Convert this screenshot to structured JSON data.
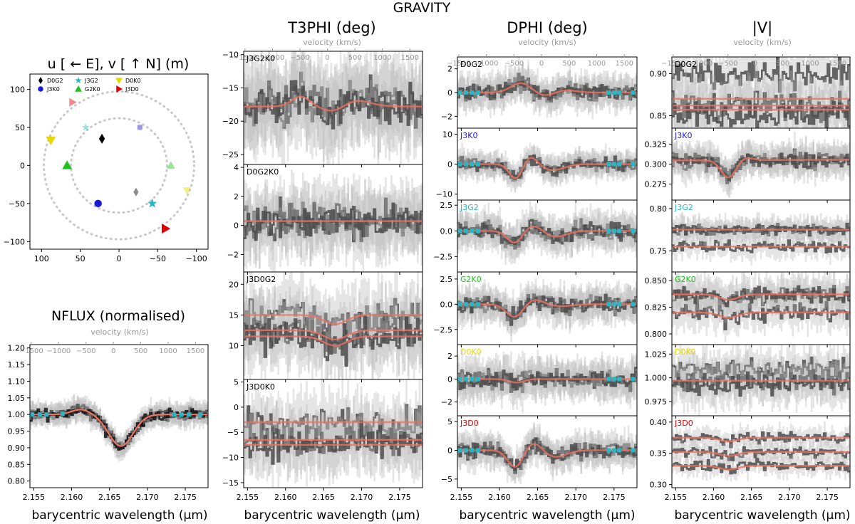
{
  "figure": {
    "suptitle": "GRAVITY",
    "column_titles": [
      "T3PHI (deg)",
      "DPHI (deg)",
      "|V|"
    ]
  },
  "colors": {
    "model": "#f07060",
    "data": "#4a4a4a",
    "continuum_marker": "#2ab7c4",
    "velocity_axis": "#999999",
    "D0G2": "#000000",
    "J3K0": "#1a1adb",
    "J3G2": "#2ab7c4",
    "G2K0": "#20c020",
    "D0K0": "#e6d800",
    "J3D0": "#e00000"
  },
  "chart_data": [
    {
      "id": "uv",
      "type": "scatter",
      "title": "u [ ← E], v [ ↑ N] (m)",
      "xlim": [
        115,
        -115
      ],
      "ylim": [
        -110,
        120
      ],
      "xticks": [
        100,
        50,
        0,
        -50,
        -100
      ],
      "yticks": [
        100,
        50,
        0,
        -50,
        -100
      ],
      "ring_radii_m": [
        62,
        97
      ],
      "legend": [
        "D0G2",
        "J3K0",
        "J3G2",
        "G2K0",
        "D0K0",
        "J3D0"
      ],
      "baselines": [
        {
          "name": "D0G2",
          "marker": "diamond",
          "color": "#000000",
          "u": 22,
          "v": 35
        },
        {
          "name": "J3K0",
          "marker": "circle",
          "color": "#1a1adb",
          "u": 27,
          "v": -50
        },
        {
          "name": "J3G2",
          "marker": "star",
          "color": "#2ab7c4",
          "u": -43,
          "v": -50
        },
        {
          "name": "G2K0",
          "marker": "triangle-up",
          "color": "#20c020",
          "u": 67,
          "v": 0
        },
        {
          "name": "D0K0",
          "marker": "triangle-down",
          "color": "#e6d800",
          "u": 88,
          "v": 33
        },
        {
          "name": "J3D0",
          "marker": "triangle-right",
          "color": "#e00000",
          "u": -60,
          "v": -83
        }
      ],
      "mirror_points": [
        {
          "name": "D0G2",
          "color": "#000000",
          "u": -22,
          "v": -35
        },
        {
          "name": "J3K0",
          "color": "#1a1adb",
          "u": -27,
          "v": 50
        },
        {
          "name": "J3G2",
          "color": "#2ab7c4",
          "u": 43,
          "v": 50
        },
        {
          "name": "G2K0",
          "color": "#20c020",
          "u": -67,
          "v": 0
        },
        {
          "name": "D0K0",
          "color": "#e6d800",
          "u": -88,
          "v": -33
        },
        {
          "name": "J3D0",
          "color": "#e00000",
          "u": 60,
          "v": 83
        }
      ]
    },
    {
      "id": "nflux",
      "type": "line",
      "title": "NFLUX (normalised)",
      "xlabel": "barycentric wavelength (μm)",
      "vlabel": "velocity (km/s)",
      "xlim": [
        2.1545,
        2.178
      ],
      "ylim": [
        0.78,
        1.21
      ],
      "xticks": [
        "2.155",
        "2.160",
        "2.165",
        "2.170",
        "2.175"
      ],
      "yticks": [
        "0.80",
        "0.85",
        "0.90",
        "0.95",
        "1.00",
        "1.05",
        "1.10",
        "1.15",
        "1.20"
      ],
      "vticks": [
        "−1500",
        "−1000",
        "−500",
        "0",
        "500",
        "1000",
        "1500"
      ],
      "lines": [
        {
          "kind": "baseline",
          "value": 1.0
        }
      ],
      "features": [
        {
          "center": 2.1612,
          "amp": 0.015,
          "width": 0.0012
        },
        {
          "center": 2.1665,
          "amp": -0.095,
          "width": 0.0016
        }
      ],
      "scatter": 0.012
    },
    {
      "id": "t3_J3G2K0",
      "type": "line",
      "label": "J3G2K0",
      "label_color": "#000000",
      "xlim": [
        2.1545,
        2.178
      ],
      "ylim": [
        -26.5,
        -9.5
      ],
      "yticks": [
        "−10",
        "−15",
        "−20",
        "−25"
      ],
      "vticks": [
        "−1500",
        "−1000",
        "−500",
        "0",
        "500",
        "1000",
        "1500"
      ],
      "vlabel": "velocity (km/s)",
      "show_velocity": true,
      "lines": [
        {
          "kind": "baseline",
          "value": -17.8
        }
      ],
      "features": [
        {
          "center": 2.162,
          "amp": 1.5,
          "width": 0.0012
        },
        {
          "center": 2.1665,
          "amp": -1.0,
          "width": 0.0015
        },
        {
          "center": 2.169,
          "amp": 1.0,
          "width": 0.002
        }
      ],
      "scatter": 2.2
    },
    {
      "id": "t3_D0G2K0",
      "type": "line",
      "label": "D0G2K0",
      "label_color": "#000000",
      "xlim": [
        2.1545,
        2.178
      ],
      "ylim": [
        -3.2,
        4.2
      ],
      "yticks": [
        "4",
        "2",
        "0",
        "−2"
      ],
      "lines": [
        {
          "kind": "baseline",
          "value": 0.3
        }
      ],
      "features": [],
      "scatter": 0.8
    },
    {
      "id": "t3_J3D0G2",
      "type": "line",
      "label": "J3D0G2",
      "label_color": "#000000",
      "xlim": [
        2.1545,
        2.178
      ],
      "ylim": [
        4.5,
        22
      ],
      "yticks": [
        "20",
        "15",
        "10"
      ],
      "lines": [
        {
          "kind": "baseline",
          "value": 15
        },
        {
          "kind": "baseline",
          "value": 12.5
        },
        {
          "kind": "baseline",
          "value": 11.5
        }
      ],
      "features": [
        {
          "center": 2.1665,
          "amp": -1.5,
          "width": 0.0015
        }
      ],
      "scatter": 2.0
    },
    {
      "id": "t3_J3D0K0",
      "type": "line",
      "label": "J3D0K0",
      "label_color": "#000000",
      "xlim": [
        2.1545,
        2.178
      ],
      "ylim": [
        -16,
        5.5
      ],
      "yticks": [
        "5",
        "0",
        "−5",
        "−10",
        "−15"
      ],
      "xticks": [
        "2.155",
        "2.160",
        "2.165",
        "2.170",
        "2.175"
      ],
      "xlabel": "barycentric wavelength (μm)",
      "lines": [
        {
          "kind": "baseline",
          "value": -3.0
        },
        {
          "kind": "baseline",
          "value": -6.5
        },
        {
          "kind": "baseline",
          "value": -7.5
        }
      ],
      "features": [],
      "scatter": 2.2
    },
    {
      "id": "dphi_D0G2",
      "type": "line",
      "label": "D0G2",
      "label_color": "#000000",
      "xlim": [
        2.1545,
        2.178
      ],
      "ylim": [
        -3,
        3
      ],
      "yticks": [
        "2",
        "0",
        "−2"
      ],
      "vticks": [
        "−1500",
        "−1000",
        "−500",
        "0",
        "500",
        "1000",
        "1500"
      ],
      "vlabel": "velocity (km/s)",
      "show_velocity": true,
      "lines": [
        {
          "kind": "baseline",
          "value": 0
        }
      ],
      "features": [
        {
          "center": 2.1628,
          "amp": 0.8,
          "width": 0.0013
        },
        {
          "center": 2.166,
          "amp": -0.3,
          "width": 0.0012
        },
        {
          "center": 2.1685,
          "amp": 0.2,
          "width": 0.0015
        }
      ],
      "scatter": 0.5,
      "cont_markers": true
    },
    {
      "id": "dphi_J3K0",
      "type": "line",
      "label": "J3K0",
      "label_color": "#1a1adb",
      "xlim": [
        2.1545,
        2.178
      ],
      "ylim": [
        -12,
        12
      ],
      "yticks": [
        "10",
        "0",
        "−10"
      ],
      "lines": [
        {
          "kind": "baseline",
          "value": 0
        }
      ],
      "features": [
        {
          "center": 2.1622,
          "amp": -5.0,
          "width": 0.0009
        },
        {
          "center": 2.164,
          "amp": 3.0,
          "width": 0.0009
        },
        {
          "center": 2.167,
          "amp": -2.0,
          "width": 0.0015
        }
      ],
      "scatter": 1.5,
      "cont_markers": true
    },
    {
      "id": "dphi_J3G2",
      "type": "line",
      "label": "J3G2",
      "label_color": "#2ab7c4",
      "xlim": [
        2.1545,
        2.178
      ],
      "ylim": [
        -4,
        3
      ],
      "yticks": [
        "2.5",
        "0.0",
        "−2.5"
      ],
      "lines": [
        {
          "kind": "baseline",
          "value": 0
        }
      ],
      "features": [
        {
          "center": 2.162,
          "amp": -1.2,
          "width": 0.001
        },
        {
          "center": 2.1645,
          "amp": 0.6,
          "width": 0.0012
        },
        {
          "center": 2.1672,
          "amp": -0.6,
          "width": 0.0015
        }
      ],
      "scatter": 0.6,
      "cont_markers": true
    },
    {
      "id": "dphi_G2K0",
      "type": "line",
      "label": "G2K0",
      "label_color": "#20c020",
      "xlim": [
        2.1545,
        2.178
      ],
      "ylim": [
        -4,
        3.2
      ],
      "yticks": [
        "2.5",
        "0.0",
        "−2.5"
      ],
      "lines": [
        {
          "kind": "baseline",
          "value": 0
        }
      ],
      "features": [
        {
          "center": 2.162,
          "amp": -1.3,
          "width": 0.0011
        },
        {
          "center": 2.1645,
          "amp": 0.5,
          "width": 0.0012
        },
        {
          "center": 2.168,
          "amp": -0.2,
          "width": 0.0015
        }
      ],
      "scatter": 0.6,
      "cont_markers": true
    },
    {
      "id": "dphi_D0K0",
      "type": "line",
      "label": "D0K0",
      "label_color": "#e6d800",
      "xlim": [
        2.1545,
        2.178
      ],
      "ylim": [
        -3.2,
        3
      ],
      "yticks": [
        "2",
        "0",
        "−2"
      ],
      "lines": [
        {
          "kind": "baseline",
          "value": 0
        }
      ],
      "features": [
        {
          "center": 2.1622,
          "amp": -0.3,
          "width": 0.001
        }
      ],
      "scatter": 0.6,
      "cont_markers": true
    },
    {
      "id": "dphi_J3D0",
      "type": "line",
      "label": "J3D0",
      "label_color": "#e00000",
      "xlim": [
        2.1545,
        2.178
      ],
      "ylim": [
        -6.5,
        6
      ],
      "yticks": [
        "5",
        "0",
        "−5"
      ],
      "xticks": [
        "2.155",
        "2.160",
        "2.165",
        "2.170",
        "2.175"
      ],
      "xlabel": "barycentric wavelength (μm)",
      "lines": [
        {
          "kind": "baseline",
          "value": 0
        }
      ],
      "features": [
        {
          "center": 2.1621,
          "amp": -3.0,
          "width": 0.001
        },
        {
          "center": 2.1645,
          "amp": 1.5,
          "width": 0.0011
        },
        {
          "center": 2.1672,
          "amp": -1.2,
          "width": 0.0015
        }
      ],
      "scatter": 1.0,
      "cont_markers": true
    },
    {
      "id": "vis_D0G2",
      "type": "line",
      "label": "D0G2",
      "label_color": "#000000",
      "xlim": [
        2.1545,
        2.178
      ],
      "ylim": [
        0.835,
        0.92
      ],
      "yticks": [
        "0.90",
        "0.85"
      ],
      "vticks": [
        "−1500",
        "−1000",
        "−500",
        "0",
        "500",
        "1000",
        "1500"
      ],
      "vlabel": "velocity (km/s)",
      "show_velocity": true,
      "lines": [
        {
          "kind": "baseline",
          "value": 0.87
        },
        {
          "kind": "baseline",
          "value": 0.862
        },
        {
          "kind": "baseline",
          "value": 0.857
        }
      ],
      "features": [],
      "scatter": 0.012,
      "offsets": [
        0.03,
        0.0,
        -0.005
      ]
    },
    {
      "id": "vis_J3K0",
      "type": "line",
      "label": "J3K0",
      "label_color": "#1a1adb",
      "xlim": [
        2.1545,
        2.178
      ],
      "ylim": [
        0.255,
        0.345
      ],
      "yticks": [
        "0.325",
        "0.300",
        "0.275"
      ],
      "lines": [
        {
          "kind": "baseline",
          "value": 0.305
        }
      ],
      "features": [
        {
          "center": 2.162,
          "amp": -0.022,
          "width": 0.001
        },
        {
          "center": 2.164,
          "amp": 0.004,
          "width": 0.001
        }
      ],
      "scatter": 0.007,
      "trend": 0.0004
    },
    {
      "id": "vis_J3G2",
      "type": "line",
      "label": "J3G2",
      "label_color": "#2ab7c4",
      "xlim": [
        2.1545,
        2.178
      ],
      "ylim": [
        0.725,
        0.81
      ],
      "yticks": [
        "0.80",
        "0.75"
      ],
      "lines": [
        {
          "kind": "baseline",
          "value": 0.775
        },
        {
          "kind": "baseline",
          "value": 0.755
        }
      ],
      "features": [],
      "scatter": 0.005
    },
    {
      "id": "vis_G2K0",
      "type": "line",
      "label": "G2K0",
      "label_color": "#20c020",
      "xlim": [
        2.1545,
        2.178
      ],
      "ylim": [
        0.79,
        0.858
      ],
      "yticks": [
        "0.850",
        "0.825",
        "0.800"
      ],
      "lines": [
        {
          "kind": "baseline",
          "value": 0.837
        },
        {
          "kind": "baseline",
          "value": 0.82
        }
      ],
      "features": [
        {
          "center": 2.162,
          "amp": -0.005,
          "width": 0.0012
        }
      ],
      "scatter": 0.006
    },
    {
      "id": "vis_D0K0",
      "type": "line",
      "label": "D0K0",
      "label_color": "#e6d800",
      "xlim": [
        2.1545,
        2.178
      ],
      "ylim": [
        0.96,
        1.035
      ],
      "yticks": [
        "1.025",
        "1.000",
        "0.975"
      ],
      "lines": [
        {
          "kind": "baseline",
          "value": 0.997
        }
      ],
      "features": [],
      "scatter": 0.008,
      "offsets": [
        0.012,
        0.0,
        -0.004
      ]
    },
    {
      "id": "vis_J3D0",
      "type": "line",
      "label": "J3D0",
      "label_color": "#e00000",
      "xlim": [
        2.1545,
        2.178
      ],
      "ylim": [
        0.295,
        0.41
      ],
      "yticks": [
        "0.40",
        "0.35",
        "0.30"
      ],
      "xticks": [
        "2.155",
        "2.160",
        "2.165",
        "2.170",
        "2.175"
      ],
      "xlabel": "barycentric wavelength (μm)",
      "lines": [
        {
          "kind": "baseline",
          "value": 0.375
        },
        {
          "kind": "baseline",
          "value": 0.352
        },
        {
          "kind": "baseline",
          "value": 0.33
        }
      ],
      "features": [
        {
          "center": 2.162,
          "amp": -0.006,
          "width": 0.0012
        }
      ],
      "scatter": 0.006
    }
  ]
}
